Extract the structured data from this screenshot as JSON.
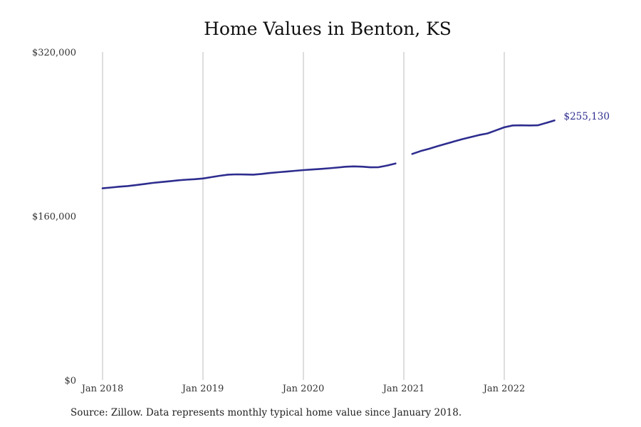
{
  "chart_data": {
    "type": "line",
    "title": "Home Values in Benton, KS",
    "xlabel": "",
    "ylabel": "",
    "x_tick_labels": [
      "Jan 2018",
      "Jan 2019",
      "Jan 2020",
      "Jan 2021",
      "Jan 2022"
    ],
    "y_tick_labels": [
      "$320,000",
      "$160,000",
      "$0"
    ],
    "y_ticks": [
      320000,
      160000,
      0
    ],
    "ylim": [
      0,
      320000
    ],
    "x_range": [
      "2018-01",
      "2022-09"
    ],
    "grid": "vertical lines at x ticks",
    "series": [
      {
        "color": "#2e2d8f",
        "points": [
          {
            "x": "2018-01",
            "y": 187000
          },
          {
            "x": "2018-02",
            "y": 187800
          },
          {
            "x": "2018-03",
            "y": 188600
          },
          {
            "x": "2018-04",
            "y": 189200
          },
          {
            "x": "2018-05",
            "y": 190100
          },
          {
            "x": "2018-06",
            "y": 191200
          },
          {
            "x": "2018-07",
            "y": 192300
          },
          {
            "x": "2018-08",
            "y": 193100
          },
          {
            "x": "2018-09",
            "y": 193900
          },
          {
            "x": "2018-10",
            "y": 194800
          },
          {
            "x": "2018-11",
            "y": 195400
          },
          {
            "x": "2018-12",
            "y": 195900
          },
          {
            "x": "2019-01",
            "y": 196600
          },
          {
            "x": "2019-02",
            "y": 197900
          },
          {
            "x": "2019-03",
            "y": 199200
          },
          {
            "x": "2019-04",
            "y": 200300
          },
          {
            "x": "2019-05",
            "y": 200600
          },
          {
            "x": "2019-06",
            "y": 200500
          },
          {
            "x": "2019-07",
            "y": 200300
          },
          {
            "x": "2019-08",
            "y": 201000
          },
          {
            "x": "2019-09",
            "y": 201900
          },
          {
            "x": "2019-10",
            "y": 202700
          },
          {
            "x": "2019-11",
            "y": 203300
          },
          {
            "x": "2019-12",
            "y": 204100
          },
          {
            "x": "2020-01",
            "y": 204800
          },
          {
            "x": "2020-02",
            "y": 205300
          },
          {
            "x": "2020-03",
            "y": 205900
          },
          {
            "x": "2020-04",
            "y": 206500
          },
          {
            "x": "2020-05",
            "y": 207200
          },
          {
            "x": "2020-06",
            "y": 208000
          },
          {
            "x": "2020-07",
            "y": 208400
          },
          {
            "x": "2020-08",
            "y": 208100
          },
          {
            "x": "2020-09",
            "y": 207500
          },
          {
            "x": "2020-10",
            "y": 207600
          },
          {
            "x": "2020-11",
            "y": 209200
          },
          {
            "x": "2020-12",
            "y": 211200
          },
          {
            "x": "2021-01",
            "y": null
          },
          {
            "x": "2021-02",
            "y": 220500
          },
          {
            "x": "2021-03",
            "y": 223300
          },
          {
            "x": "2021-04",
            "y": 225500
          },
          {
            "x": "2021-05",
            "y": 228000
          },
          {
            "x": "2021-06",
            "y": 230400
          },
          {
            "x": "2021-07",
            "y": 232700
          },
          {
            "x": "2021-08",
            "y": 235000
          },
          {
            "x": "2021-09",
            "y": 237000
          },
          {
            "x": "2021-10",
            "y": 239000
          },
          {
            "x": "2021-11",
            "y": 240500
          },
          {
            "x": "2021-12",
            "y": 243500
          },
          {
            "x": "2022-01",
            "y": 246500
          },
          {
            "x": "2022-02",
            "y": 248300
          },
          {
            "x": "2022-03",
            "y": 248400
          },
          {
            "x": "2022-04",
            "y": 248300
          },
          {
            "x": "2022-05",
            "y": 248400
          },
          {
            "x": "2022-06",
            "y": 250800
          },
          {
            "x": "2022-07",
            "y": 253200
          }
        ]
      }
    ],
    "end_label": "$255,130",
    "source": "Source: Zillow. Data represents monthly typical home value since January 2018."
  }
}
